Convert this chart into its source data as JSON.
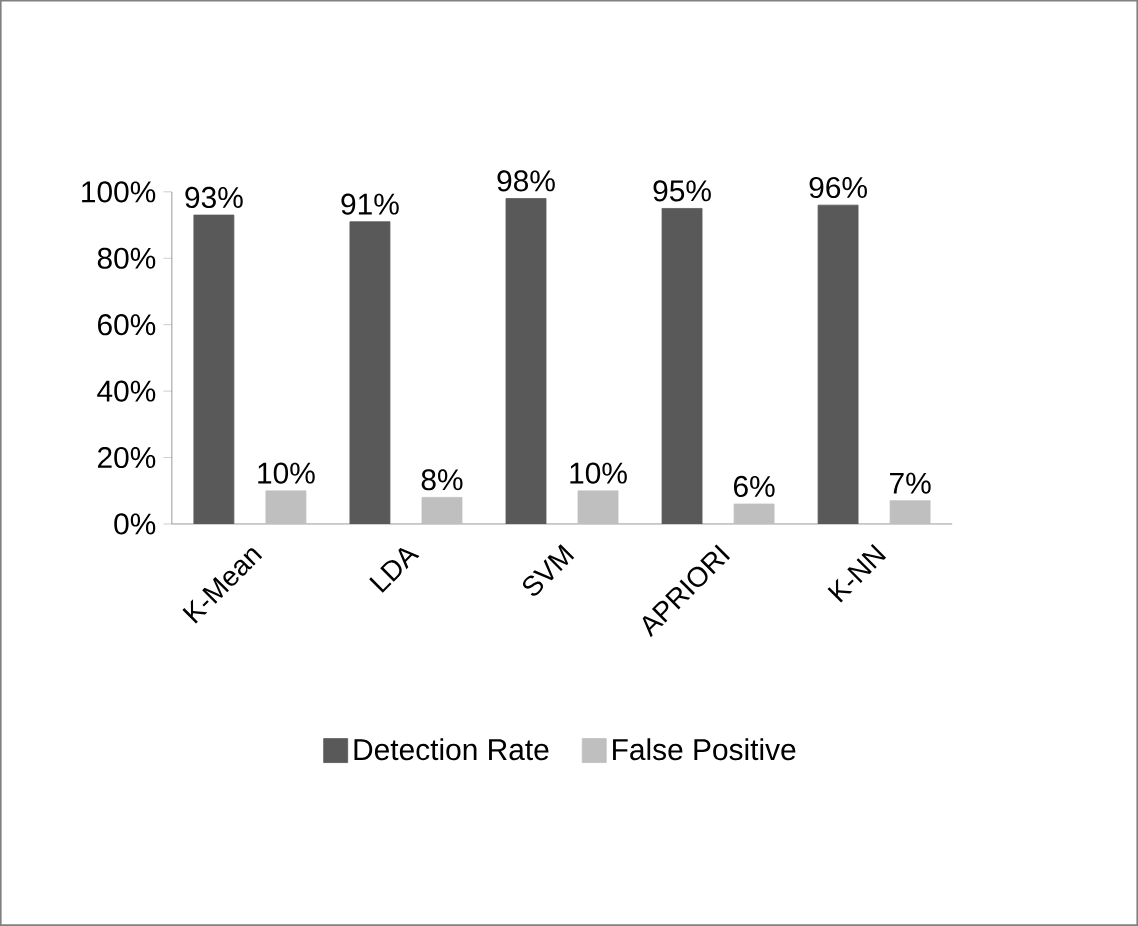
{
  "chart_data": {
    "type": "bar",
    "categories": [
      "K-Mean",
      "LDA",
      "SVM",
      "APRIORI",
      "K-NN"
    ],
    "series": [
      {
        "name": "Detection Rate",
        "color": "#595959",
        "values": [
          93,
          91,
          98,
          95,
          96
        ],
        "value_labels": [
          "93%",
          "91%",
          "98%",
          "95%",
          "96%"
        ]
      },
      {
        "name": "False Positive",
        "color": "#bfbfbf",
        "values": [
          10,
          8,
          10,
          6,
          7
        ],
        "value_labels": [
          "10%",
          "8%",
          "10%",
          "6%",
          "7%"
        ]
      }
    ],
    "ylim": [
      0,
      100
    ],
    "yticks": [
      {
        "value": 0,
        "label": "0%"
      },
      {
        "value": 20,
        "label": "20%"
      },
      {
        "value": 40,
        "label": "40%"
      },
      {
        "value": 60,
        "label": "60%"
      },
      {
        "value": 80,
        "label": "80%"
      },
      {
        "value": 100,
        "label": "100%"
      }
    ],
    "legend": "bottom"
  }
}
